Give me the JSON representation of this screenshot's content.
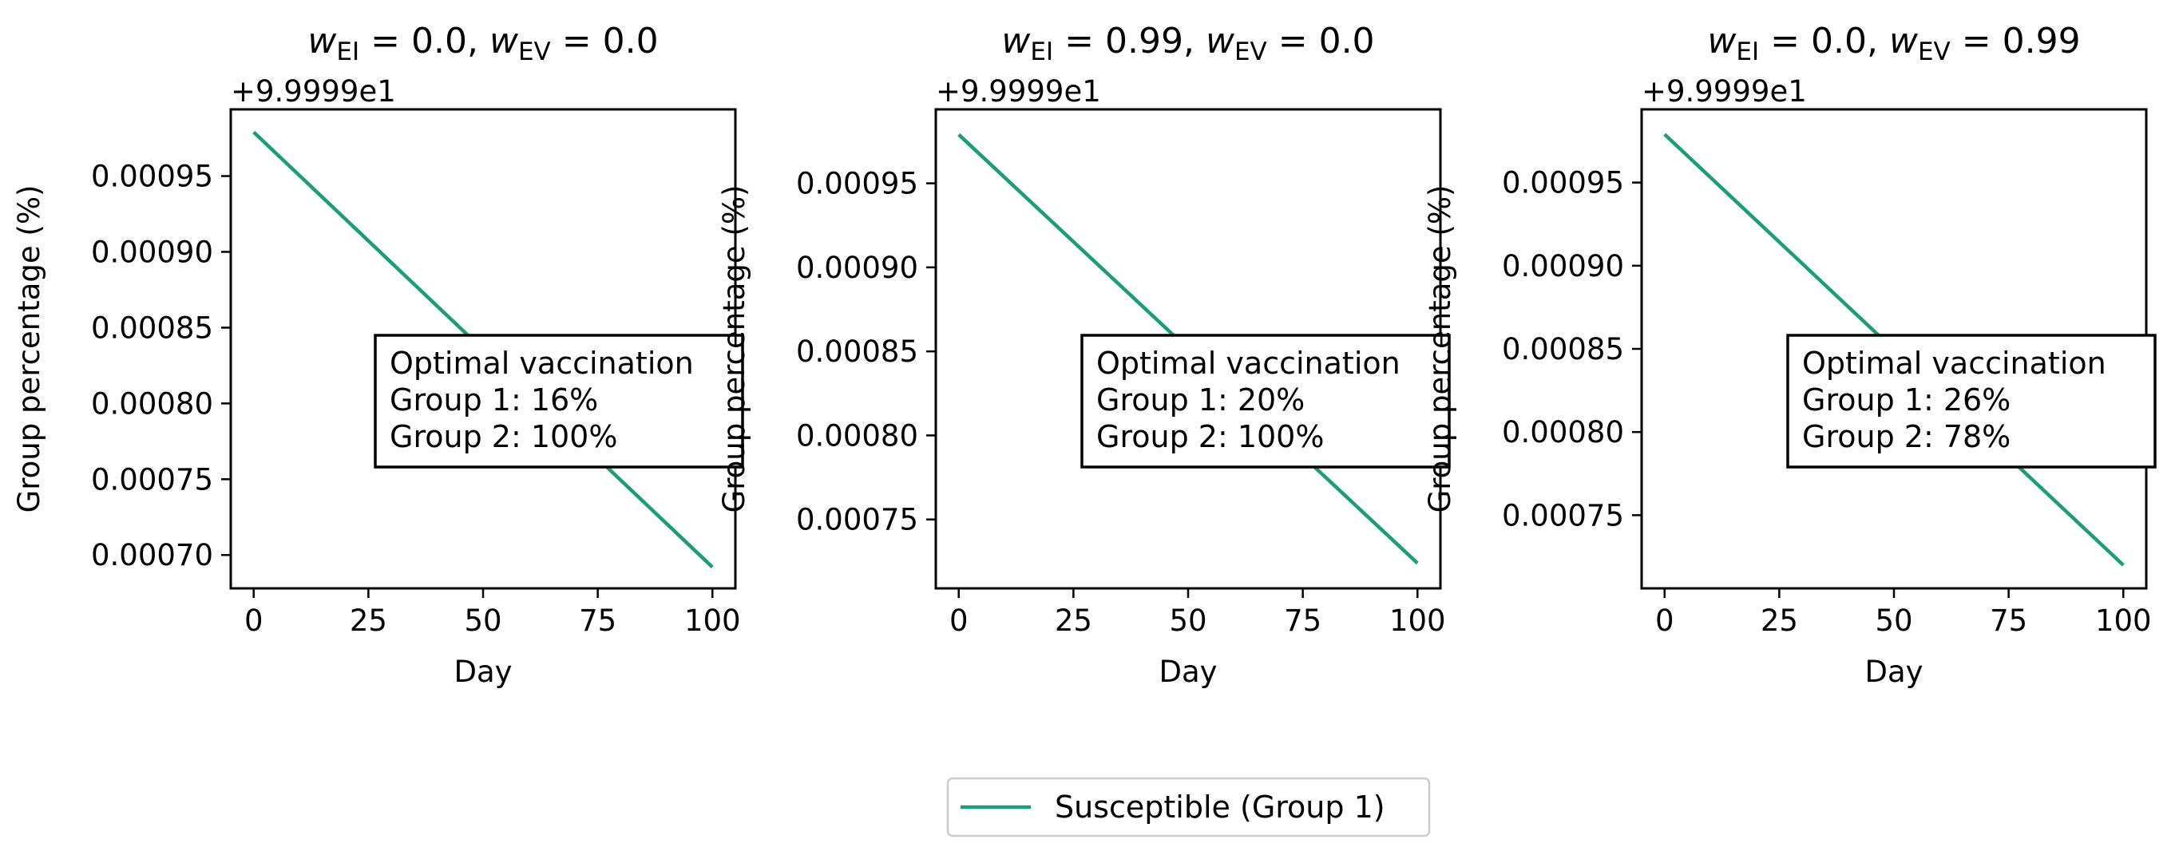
{
  "chart_data": [
    {
      "type": "line",
      "title": "w_EI = 0.0, w_EV = 0.0",
      "title_parts": {
        "w1": "w",
        "sub1": "EI",
        "eq1": " = 0.0, ",
        "w2": "w",
        "sub2": "EV",
        "eq2": " = 0.0"
      },
      "offset_text": "+9.9999e1",
      "xlabel": "Day",
      "ylabel": "Group percentage (%)",
      "xlim": [
        -5,
        105
      ],
      "ylim": [
        0.000678,
        0.000994
      ],
      "xticks": [
        0,
        25,
        50,
        75,
        100
      ],
      "xtick_labels": [
        "0",
        "25",
        "50",
        "75",
        "100"
      ],
      "yticks": [
        0.0007,
        0.00075,
        0.0008,
        0.00085,
        0.0009,
        0.00095
      ],
      "ytick_labels": [
        "0.00070",
        "0.00075",
        "0.00080",
        "0.00085",
        "0.00090",
        "0.00095"
      ],
      "series": [
        {
          "name": "Susceptible (Group 1)",
          "color": "#1b9e77",
          "x": [
            0,
            100
          ],
          "y": [
            0.000979,
            0.000692
          ]
        }
      ],
      "annotation": [
        "Optimal vaccination",
        "Group 1: 16%",
        "Group 2: 100%"
      ]
    },
    {
      "type": "line",
      "title": "w_EI = 0.99, w_EV = 0.0",
      "title_parts": {
        "w1": "w",
        "sub1": "EI",
        "eq1": " = 0.99, ",
        "w2": "w",
        "sub2": "EV",
        "eq2": " = 0.0"
      },
      "offset_text": "+9.9999e1",
      "xlabel": "Day",
      "ylabel": "Group percentage (%)",
      "xlim": [
        -5,
        105
      ],
      "ylim": [
        0.000709,
        0.000994
      ],
      "xticks": [
        0,
        25,
        50,
        75,
        100
      ],
      "xtick_labels": [
        "0",
        "25",
        "50",
        "75",
        "100"
      ],
      "yticks": [
        0.00075,
        0.0008,
        0.00085,
        0.0009,
        0.00095
      ],
      "ytick_labels": [
        "0.00075",
        "0.00080",
        "0.00085",
        "0.00090",
        "0.00095"
      ],
      "series": [
        {
          "name": "Susceptible (Group 1)",
          "color": "#1b9e77",
          "x": [
            0,
            100
          ],
          "y": [
            0.000979,
            0.000724
          ]
        }
      ],
      "annotation": [
        "Optimal vaccination",
        "Group 1: 20%",
        "Group 2: 100%"
      ]
    },
    {
      "type": "line",
      "title": "w_EI = 0.0, w_EV = 0.99",
      "title_parts": {
        "w1": "w",
        "sub1": "EI",
        "eq1": " = 0.0, ",
        "w2": "w",
        "sub2": "EV",
        "eq2": " = 0.99"
      },
      "offset_text": "+9.9999e1",
      "xlabel": "Day",
      "ylabel": "Group percentage (%)",
      "xlim": [
        -5,
        105
      ],
      "ylim": [
        0.000706,
        0.000994
      ],
      "xticks": [
        0,
        25,
        50,
        75,
        100
      ],
      "xtick_labels": [
        "0",
        "25",
        "50",
        "75",
        "100"
      ],
      "yticks": [
        0.00075,
        0.0008,
        0.00085,
        0.0009,
        0.00095
      ],
      "ytick_labels": [
        "0.00075",
        "0.00080",
        "0.00085",
        "0.00090",
        "0.00095"
      ],
      "series": [
        {
          "name": "Susceptible (Group 1)",
          "color": "#1b9e77",
          "x": [
            0,
            100
          ],
          "y": [
            0.000979,
            0.00072
          ]
        }
      ],
      "annotation": [
        "Optimal vaccination",
        "Group 1: 26%",
        "Group 2: 78%"
      ]
    }
  ],
  "legend": {
    "placement": "bottom-center",
    "entries": [
      {
        "label": "Susceptible (Group 1)",
        "color": "#1b9e77"
      }
    ]
  }
}
